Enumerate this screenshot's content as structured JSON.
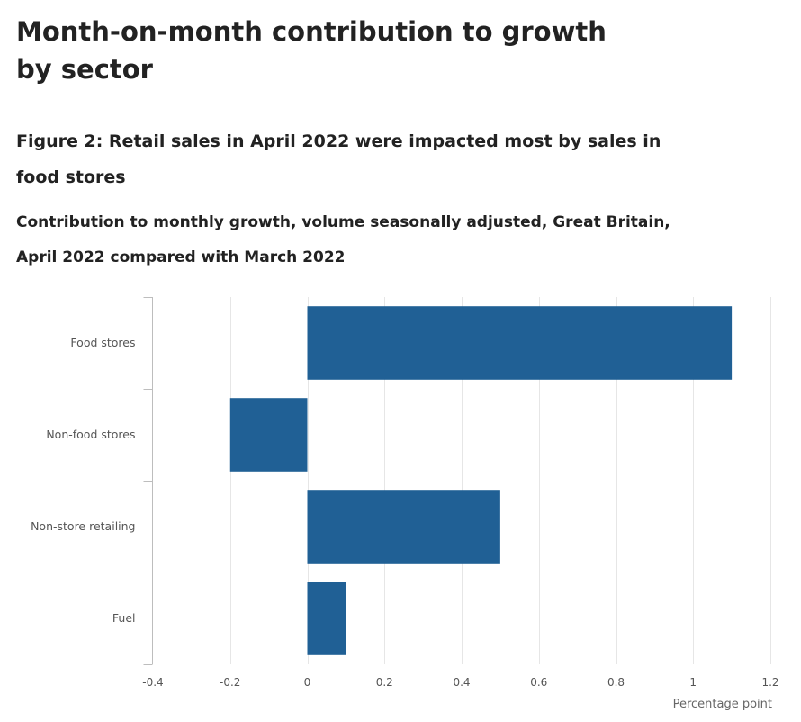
{
  "page": {
    "title": "Month-on-month contribution to growth by sector"
  },
  "chart_data": {
    "type": "bar",
    "orientation": "horizontal",
    "title": "Figure 2: Retail sales in April 2022 were impacted most by sales in food stores",
    "subtitle": "Contribution to monthly growth, volume seasonally adjusted, Great Britain, April 2022 compared with March 2022",
    "categories": [
      "Food stores",
      "Non-food stores",
      "Non-store retailing",
      "Fuel"
    ],
    "values": [
      1.1,
      -0.2,
      0.5,
      0.1
    ],
    "xlabel": "Percentage point",
    "ylabel": "",
    "xlim": [
      -0.4,
      1.2
    ],
    "ticks": [
      -0.4,
      -0.2,
      0,
      0.2,
      0.4,
      0.6,
      0.8,
      1,
      1.2
    ],
    "tick_labels": [
      "-0.4",
      "-0.2",
      "0",
      "0.2",
      "0.4",
      "0.6",
      "0.8",
      "1",
      "1.2"
    ],
    "grid": true,
    "bar_color": "#206095",
    "grid_color": "#e6e6e6",
    "axis_color": "#bdbdbd"
  }
}
